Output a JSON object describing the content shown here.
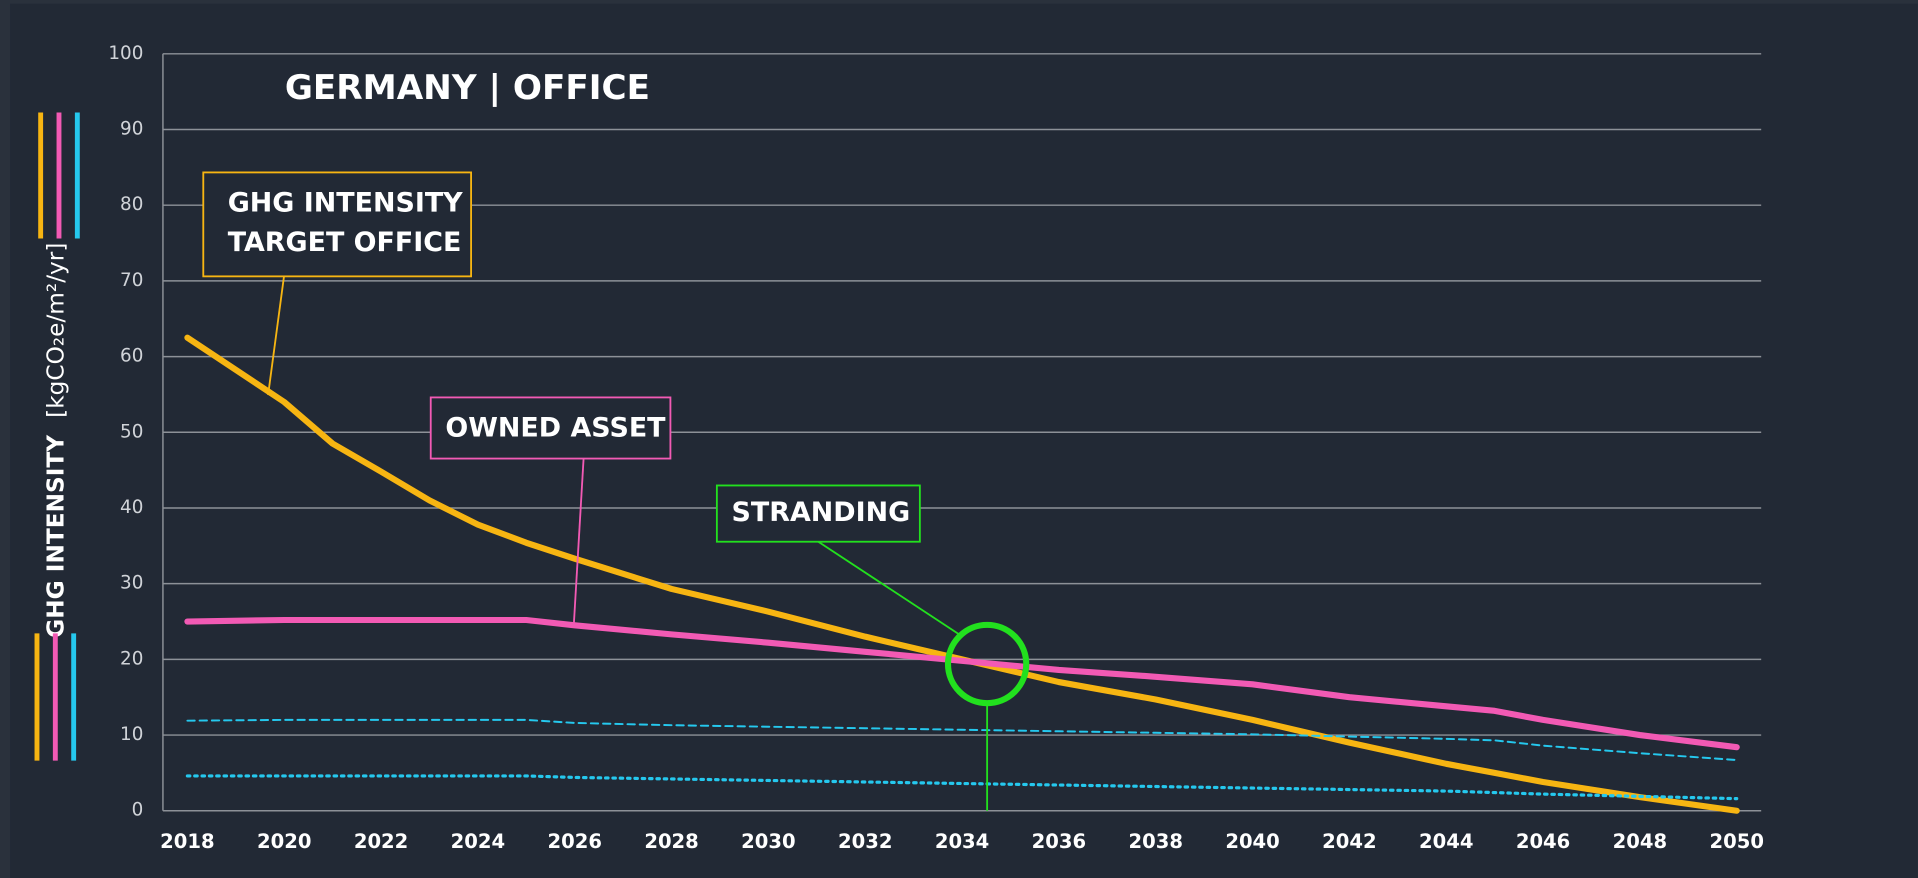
{
  "chart_data": {
    "type": "line",
    "title": "GERMANY | OFFICE",
    "ylabel": "GHG INTENSITY",
    "ylabel_unit": "[kgCO₂e/m²/yr]",
    "x": [
      2018,
      2020,
      2021,
      2022,
      2023,
      2024,
      2025,
      2026,
      2028,
      2030,
      2032,
      2034,
      2036,
      2038,
      2040,
      2042,
      2044,
      2045,
      2046,
      2048,
      2050
    ],
    "xlim": [
      2018,
      2050
    ],
    "xticks": [
      2018,
      2020,
      2022,
      2024,
      2026,
      2028,
      2030,
      2032,
      2034,
      2036,
      2038,
      2040,
      2042,
      2044,
      2046,
      2048,
      2050
    ],
    "ylim": [
      0,
      100
    ],
    "yticks": [
      0,
      10,
      20,
      30,
      40,
      50,
      60,
      70,
      80,
      90,
      100
    ],
    "grid": true,
    "series": [
      {
        "name": [
          "GHG INTENSITY",
          "TARGET OFFICE"
        ],
        "color": "#f7b512",
        "style": "solid",
        "values": [
          62.5,
          54,
          48.5,
          44.8,
          41,
          37.8,
          35.4,
          33.3,
          29.3,
          26.3,
          23,
          20,
          17,
          14.7,
          12,
          9,
          6.2,
          5,
          3.8,
          1.8,
          0
        ]
      },
      {
        "name": "OWNED ASSET",
        "color": "#f25ab4",
        "style": "solid",
        "values": [
          25,
          25.2,
          25.2,
          25.2,
          25.2,
          25.2,
          25.2,
          24.5,
          23.3,
          22.2,
          21,
          19.8,
          18.6,
          17.7,
          16.7,
          15,
          13.8,
          13.2,
          12,
          10,
          8.4
        ]
      },
      {
        "color": "#25c8ee",
        "style": "dashed",
        "values": [
          11.9,
          12,
          12,
          12,
          12,
          12,
          12,
          11.6,
          11.3,
          11.1,
          10.9,
          10.7,
          10.5,
          10.3,
          10.1,
          9.8,
          9.5,
          9.3,
          8.6,
          7.6,
          6.7
        ]
      },
      {
        "color": "#25c8ee",
        "style": "dotted",
        "values": [
          4.6,
          4.6,
          4.6,
          4.6,
          4.6,
          4.6,
          4.6,
          4.4,
          4.2,
          4,
          3.8,
          3.6,
          3.4,
          3.2,
          3,
          2.8,
          2.6,
          2.4,
          2.2,
          1.9,
          1.6
        ]
      }
    ],
    "annotations": [
      "STRANDING"
    ]
  }
}
